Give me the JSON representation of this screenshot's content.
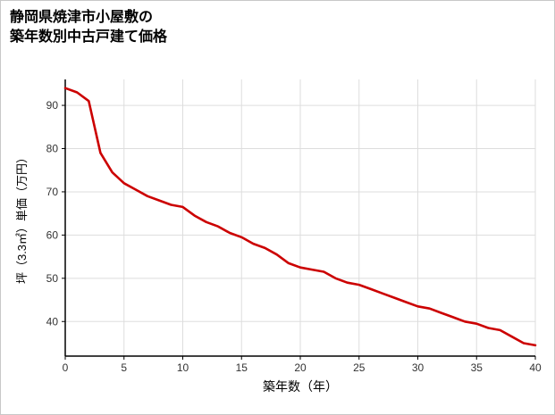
{
  "title": {
    "line1": "静岡県焼津市小屋敷の",
    "line2": "築年数別中古戸建て価格"
  },
  "chart_data": {
    "type": "line",
    "title": "静岡県焼津市小屋敷の築年数別中古戸建て価格",
    "xlabel": "築年数（年）",
    "ylabel": "坪（3.3㎡）単価（万円）",
    "x": [
      0,
      1,
      2,
      3,
      4,
      5,
      6,
      7,
      8,
      9,
      10,
      11,
      12,
      13,
      14,
      15,
      16,
      17,
      18,
      19,
      20,
      21,
      22,
      23,
      24,
      25,
      26,
      27,
      28,
      29,
      30,
      31,
      32,
      33,
      34,
      35,
      36,
      37,
      38,
      39,
      40
    ],
    "values": [
      94,
      93,
      91,
      79,
      74.5,
      72,
      70.5,
      69,
      68,
      67,
      66.5,
      64.5,
      63,
      62,
      60.5,
      59.5,
      58,
      57,
      55.5,
      53.5,
      52.5,
      52,
      51.5,
      50,
      49,
      48.5,
      47.5,
      46.5,
      45.5,
      44.5,
      43.5,
      43,
      42,
      41,
      40,
      39.5,
      38.5,
      38,
      36.5,
      35,
      34.5
    ],
    "xlim": [
      0,
      40
    ],
    "ylim": [
      32,
      96
    ],
    "xticks": [
      0,
      5,
      10,
      15,
      20,
      25,
      30,
      35,
      40
    ],
    "yticks": [
      40,
      50,
      60,
      70,
      80,
      90
    ],
    "grid": true,
    "legend": "none",
    "line_color": "#cc0000",
    "axis_color": "#000000",
    "grid_color": "#dddddd",
    "tick_label_color": "#333333"
  }
}
